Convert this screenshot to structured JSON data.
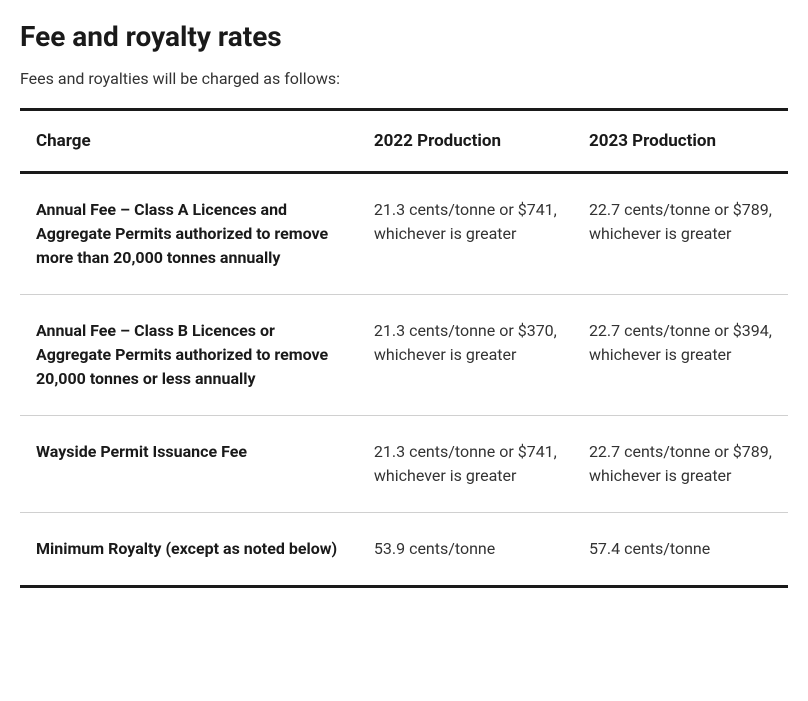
{
  "title": "Fee and royalty rates",
  "intro": "Fees and royalties will be charged as follows:",
  "table": {
    "columns": [
      "Charge",
      "2022 Production",
      "2023 Production"
    ],
    "rows": [
      {
        "charge": "Annual Fee – Class A Licences and Aggregate Permits authorized to remove more than 20,000 tonnes annually",
        "y2022": "21.3 cents/tonne or $741, whichever is greater",
        "y2023": "22.7 cents/tonne or $789, whichever is greater"
      },
      {
        "charge": "Annual Fee – Class B Licences or Aggregate Permits authorized to remove 20,000 tonnes or less annually",
        "y2022": "21.3 cents/tonne or $370, whichever is greater",
        "y2023": "22.7 cents/tonne or $394, whichever is greater"
      },
      {
        "charge": "Wayside Permit Issuance Fee",
        "y2022": "21.3 cents/tonne or $741, whichever is greater",
        "y2023": "22.7 cents/tonne or $789, whichever is greater"
      },
      {
        "charge": "Minimum Royalty (except as noted below)",
        "y2022": "53.9 cents/tonne",
        "y2023": "57.4 cents/tonne"
      }
    ]
  },
  "styling": {
    "title_fontsize": 28,
    "title_fontweight": 700,
    "intro_fontsize": 16,
    "header_fontsize": 17,
    "cell_fontsize": 16,
    "text_color": "#333333",
    "heading_color": "#1a1a1a",
    "background_color": "#ffffff",
    "border_color_heavy": "#1a1a1a",
    "border_color_light": "#d0d0d0",
    "col_widths_pct": [
      44,
      28,
      28
    ]
  }
}
